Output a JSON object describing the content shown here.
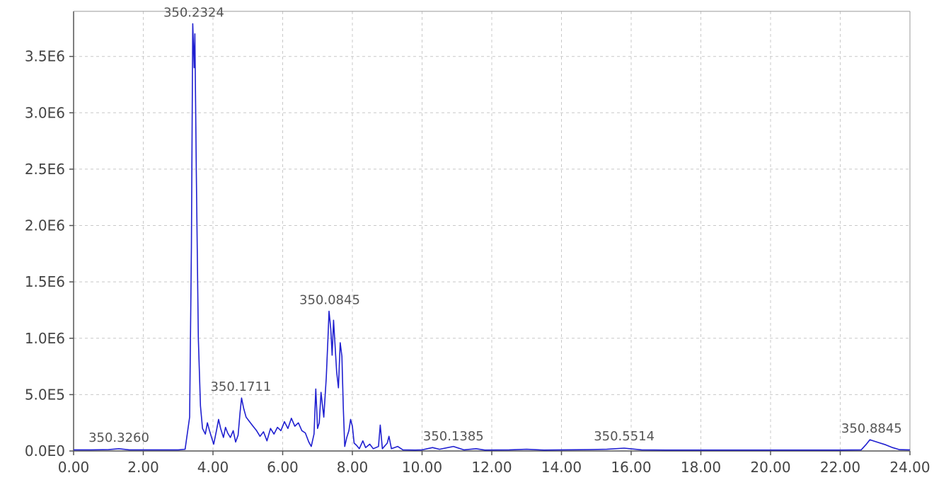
{
  "chart_data": {
    "type": "line",
    "title": "",
    "xlabel": "",
    "ylabel": "",
    "xlim": [
      0,
      24
    ],
    "ylim": [
      0,
      3900000
    ],
    "x_ticks": [
      "0.00",
      "2.00",
      "4.00",
      "6.00",
      "8.00",
      "10.00",
      "12.00",
      "14.00",
      "16.00",
      "18.00",
      "20.00",
      "22.00",
      "24.00"
    ],
    "y_ticks": [
      "0.0E0",
      "5.0E5",
      "1.0E6",
      "1.5E6",
      "2.0E6",
      "2.5E6",
      "3.0E6",
      "3.5E6"
    ],
    "y_tick_values": [
      0,
      500000,
      1000000,
      1500000,
      2000000,
      2500000,
      3000000,
      3500000
    ],
    "grid": true,
    "line_color": "#1f1fd0",
    "grid_color": "#c8c8c8",
    "peak_labels": [
      {
        "text": "350.2324",
        "x": 3.45,
        "y": 3790000
      },
      {
        "text": "350.0845",
        "x": 7.35,
        "y": 1240000
      },
      {
        "text": "350.1711",
        "x": 4.8,
        "y": 470000
      },
      {
        "text": "350.3260",
        "x": 1.3,
        "y": 20000
      },
      {
        "text": "350.1385",
        "x": 10.9,
        "y": 30000
      },
      {
        "text": "350.5514",
        "x": 15.8,
        "y": 30000
      },
      {
        "text": "350.8845",
        "x": 22.9,
        "y": 100000
      }
    ],
    "series": [
      {
        "points": [
          [
            0.0,
            10000
          ],
          [
            0.5,
            10000
          ],
          [
            1.0,
            12000
          ],
          [
            1.3,
            20000
          ],
          [
            1.6,
            10000
          ],
          [
            2.0,
            10000
          ],
          [
            2.5,
            10000
          ],
          [
            3.0,
            10000
          ],
          [
            3.2,
            15000
          ],
          [
            3.33,
            300000
          ],
          [
            3.38,
            1800000
          ],
          [
            3.42,
            3790000
          ],
          [
            3.46,
            3400000
          ],
          [
            3.48,
            3700000
          ],
          [
            3.52,
            2500000
          ],
          [
            3.58,
            1000000
          ],
          [
            3.64,
            400000
          ],
          [
            3.7,
            200000
          ],
          [
            3.78,
            150000
          ],
          [
            3.84,
            250000
          ],
          [
            3.9,
            180000
          ],
          [
            3.96,
            120000
          ],
          [
            4.02,
            60000
          ],
          [
            4.1,
            180000
          ],
          [
            4.16,
            280000
          ],
          [
            4.22,
            200000
          ],
          [
            4.3,
            120000
          ],
          [
            4.36,
            210000
          ],
          [
            4.42,
            160000
          ],
          [
            4.5,
            120000
          ],
          [
            4.58,
            180000
          ],
          [
            4.65,
            80000
          ],
          [
            4.72,
            140000
          ],
          [
            4.78,
            350000
          ],
          [
            4.82,
            470000
          ],
          [
            4.88,
            380000
          ],
          [
            4.95,
            300000
          ],
          [
            5.05,
            260000
          ],
          [
            5.15,
            220000
          ],
          [
            5.25,
            180000
          ],
          [
            5.35,
            130000
          ],
          [
            5.45,
            170000
          ],
          [
            5.55,
            90000
          ],
          [
            5.65,
            200000
          ],
          [
            5.75,
            150000
          ],
          [
            5.85,
            210000
          ],
          [
            5.95,
            180000
          ],
          [
            6.05,
            260000
          ],
          [
            6.15,
            200000
          ],
          [
            6.25,
            290000
          ],
          [
            6.35,
            220000
          ],
          [
            6.45,
            250000
          ],
          [
            6.55,
            180000
          ],
          [
            6.65,
            160000
          ],
          [
            6.75,
            80000
          ],
          [
            6.82,
            40000
          ],
          [
            6.9,
            150000
          ],
          [
            6.95,
            550000
          ],
          [
            7.0,
            200000
          ],
          [
            7.05,
            250000
          ],
          [
            7.1,
            520000
          ],
          [
            7.18,
            300000
          ],
          [
            7.25,
            650000
          ],
          [
            7.3,
            1000000
          ],
          [
            7.33,
            1240000
          ],
          [
            7.38,
            1080000
          ],
          [
            7.42,
            850000
          ],
          [
            7.46,
            1160000
          ],
          [
            7.5,
            950000
          ],
          [
            7.55,
            700000
          ],
          [
            7.6,
            560000
          ],
          [
            7.65,
            960000
          ],
          [
            7.7,
            840000
          ],
          [
            7.74,
            380000
          ],
          [
            7.78,
            40000
          ],
          [
            7.84,
            120000
          ],
          [
            7.9,
            180000
          ],
          [
            7.95,
            280000
          ],
          [
            8.0,
            220000
          ],
          [
            8.05,
            70000
          ],
          [
            8.12,
            50000
          ],
          [
            8.2,
            20000
          ],
          [
            8.3,
            90000
          ],
          [
            8.38,
            30000
          ],
          [
            8.5,
            60000
          ],
          [
            8.6,
            20000
          ],
          [
            8.75,
            40000
          ],
          [
            8.8,
            230000
          ],
          [
            8.86,
            20000
          ],
          [
            9.0,
            70000
          ],
          [
            9.05,
            130000
          ],
          [
            9.12,
            20000
          ],
          [
            9.3,
            40000
          ],
          [
            9.45,
            10000
          ],
          [
            9.8,
            8000
          ],
          [
            10.0,
            10000
          ],
          [
            10.3,
            30000
          ],
          [
            10.5,
            15000
          ],
          [
            10.9,
            40000
          ],
          [
            11.2,
            10000
          ],
          [
            11.55,
            20000
          ],
          [
            11.8,
            8000
          ],
          [
            12.5,
            10000
          ],
          [
            13.0,
            15000
          ],
          [
            13.5,
            8000
          ],
          [
            14.0,
            10000
          ],
          [
            14.8,
            12000
          ],
          [
            15.3,
            15000
          ],
          [
            15.8,
            25000
          ],
          [
            16.3,
            10000
          ],
          [
            17.0,
            8000
          ],
          [
            18.0,
            8000
          ],
          [
            19.0,
            8000
          ],
          [
            20.0,
            8000
          ],
          [
            21.0,
            8000
          ],
          [
            22.0,
            8000
          ],
          [
            22.6,
            10000
          ],
          [
            22.75,
            60000
          ],
          [
            22.85,
            100000
          ],
          [
            22.95,
            90000
          ],
          [
            23.1,
            75000
          ],
          [
            23.3,
            55000
          ],
          [
            23.5,
            30000
          ],
          [
            23.7,
            12000
          ],
          [
            24.0,
            10000
          ]
        ]
      }
    ]
  }
}
